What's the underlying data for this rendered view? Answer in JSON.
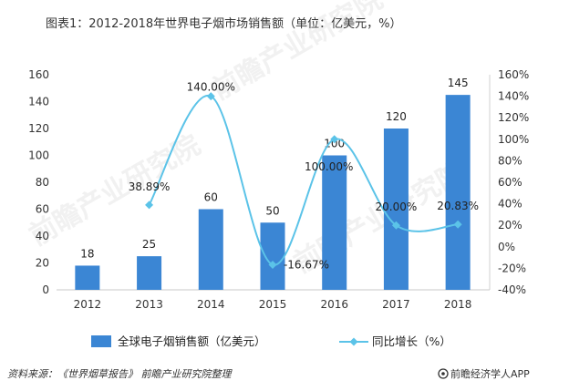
{
  "chart_data": {
    "type": "bar+line",
    "title": "图表1：2012-2018年世界电子烟市场销售额（单位：亿美元，%）",
    "categories": [
      "2012",
      "2013",
      "2014",
      "2015",
      "2016",
      "2017",
      "2018"
    ],
    "series": [
      {
        "name": "全球电子烟销售额（亿美元）",
        "type": "bar",
        "axis": "left",
        "color": "#3b86d4",
        "values": [
          18,
          25,
          60,
          50,
          100,
          120,
          145
        ],
        "labels": [
          "18",
          "25",
          "60",
          "50",
          "100",
          "120",
          "145"
        ]
      },
      {
        "name": "同比增长（%）",
        "type": "line",
        "axis": "right",
        "color": "#5bc3e8",
        "values": [
          null,
          38.89,
          140.0,
          -16.67,
          100.0,
          20.0,
          20.83
        ],
        "labels": [
          "",
          "38.89%",
          "140.00%",
          "-16.67%",
          "100.00%",
          "20.00%",
          "20.83%"
        ]
      }
    ],
    "y_left": {
      "min": 0,
      "max": 160,
      "step": 20,
      "ticks": [
        "0",
        "20",
        "40",
        "60",
        "80",
        "100",
        "120",
        "140",
        "160"
      ]
    },
    "y_right": {
      "min": -40,
      "max": 160,
      "step": 20,
      "ticks": [
        "-40%",
        "-20%",
        "0%",
        "20%",
        "40%",
        "60%",
        "80%",
        "100%",
        "120%",
        "140%",
        "160%"
      ]
    },
    "legend": {
      "placement": "bottom",
      "bar_label": "全球电子烟销售额（亿美元）",
      "line_label": "同比增长（%）"
    },
    "grid": false
  },
  "footer": {
    "source": "资料来源：《世界烟草报告》 前瞻产业研究院整理",
    "brand": "前瞻经济学人APP"
  },
  "watermark": {
    "text": "前瞻产业研究院"
  }
}
